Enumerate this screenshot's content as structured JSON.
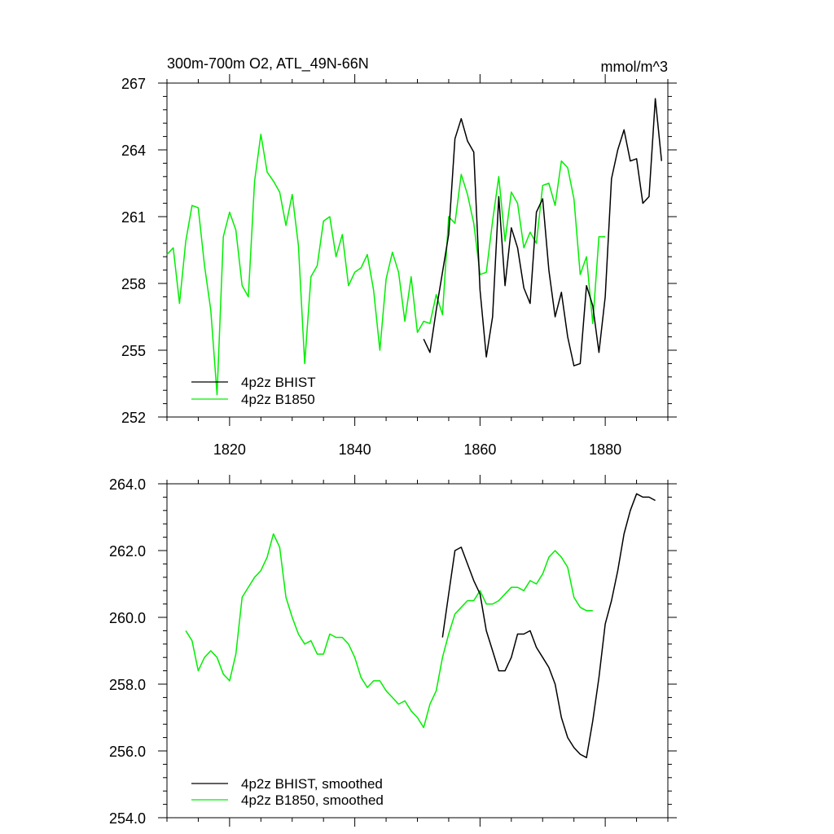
{
  "colors": {
    "bhist": "#000000",
    "b1850": "#00ee00"
  },
  "chart_data": [
    {
      "type": "line",
      "title": "300m-700m O2, ATL_49N-66N",
      "units": "mmol/m^3",
      "xlim": [
        1810,
        1890
      ],
      "ylim": [
        252,
        267
      ],
      "xticks": [
        1820,
        1840,
        1860,
        1880
      ],
      "xtick_labels": [
        "1820",
        "1840",
        "1860",
        "1880"
      ],
      "yticks": [
        252,
        255,
        258,
        261,
        264,
        267
      ],
      "ytick_labels": [
        "252",
        "255",
        "258",
        "261",
        "264",
        "267"
      ],
      "legend_position": "bottom-left",
      "series": [
        {
          "name": "4p2z BHIST",
          "color": "#000000",
          "x": [
            1851,
            1852,
            1853,
            1854,
            1855,
            1856,
            1857,
            1858,
            1859,
            1860,
            1861,
            1862,
            1863,
            1864,
            1865,
            1866,
            1867,
            1868,
            1869,
            1870,
            1871,
            1872,
            1873,
            1874,
            1875,
            1876,
            1877,
            1878,
            1879,
            1880,
            1881,
            1882,
            1883,
            1884,
            1885,
            1886,
            1887,
            1888,
            1889
          ],
          "y": [
            255.5,
            254.9,
            256.8,
            258.5,
            260.2,
            264.5,
            265.4,
            264.4,
            263.9,
            257.7,
            254.7,
            256.5,
            261.9,
            257.9,
            260.5,
            259.6,
            257.8,
            257.1,
            261.2,
            261.8,
            258.6,
            256.5,
            257.6,
            255.6,
            254.3,
            254.4,
            257.9,
            257.0,
            254.9,
            257.4,
            262.7,
            264.0,
            264.9,
            263.5,
            263.6,
            261.6,
            261.9,
            266.3,
            263.5
          ]
        },
        {
          "name": "4p2z B1850",
          "color": "#00ee00",
          "x": [
            1810,
            1811,
            1812,
            1813,
            1814,
            1815,
            1816,
            1817,
            1818,
            1819,
            1820,
            1821,
            1822,
            1823,
            1824,
            1825,
            1826,
            1827,
            1828,
            1829,
            1830,
            1831,
            1832,
            1833,
            1834,
            1835,
            1836,
            1837,
            1838,
            1839,
            1840,
            1841,
            1842,
            1843,
            1844,
            1845,
            1846,
            1847,
            1848,
            1849,
            1850,
            1851,
            1852,
            1853,
            1854,
            1855,
            1856,
            1857,
            1858,
            1859,
            1860,
            1861,
            1862,
            1863,
            1864,
            1865,
            1866,
            1867,
            1868,
            1869,
            1870,
            1871,
            1872,
            1873,
            1874,
            1875,
            1876,
            1877,
            1878,
            1879,
            1880
          ],
          "y": [
            259.3,
            259.6,
            257.1,
            259.9,
            261.5,
            261.4,
            258.8,
            256.8,
            253.0,
            260.1,
            261.2,
            260.4,
            257.9,
            257.4,
            262.6,
            264.7,
            263.0,
            262.6,
            262.1,
            260.6,
            262.0,
            259.7,
            254.4,
            258.3,
            258.8,
            260.8,
            261.0,
            259.2,
            260.2,
            257.9,
            258.5,
            258.7,
            259.3,
            257.7,
            255.0,
            258.2,
            259.4,
            258.5,
            256.3,
            258.3,
            255.8,
            256.3,
            256.2,
            257.5,
            256.6,
            261.0,
            260.7,
            262.9,
            262.0,
            260.7,
            258.4,
            258.5,
            260.8,
            262.8,
            259.9,
            262.1,
            261.6,
            259.6,
            260.3,
            259.8,
            262.4,
            262.5,
            261.5,
            263.5,
            263.2,
            261.8,
            258.4,
            259.2,
            256.2,
            260.1,
            260.1
          ]
        }
      ]
    },
    {
      "type": "line",
      "title": "",
      "xlim": [
        1810,
        1890
      ],
      "ylim": [
        254.0,
        264.0
      ],
      "xticks": [
        1820,
        1840,
        1860,
        1880
      ],
      "xtick_labels": [
        "",
        "",
        "",
        ""
      ],
      "yticks": [
        254.0,
        256.0,
        258.0,
        260.0,
        262.0,
        264.0
      ],
      "ytick_labels": [
        "254.0",
        "256.0",
        "258.0",
        "260.0",
        "262.0",
        "264.0"
      ],
      "legend_position": "bottom-left",
      "series": [
        {
          "name": "4p2z BHIST, smoothed",
          "color": "#000000",
          "x": [
            1854,
            1855,
            1856,
            1857,
            1858,
            1859,
            1860,
            1861,
            1862,
            1863,
            1864,
            1865,
            1866,
            1867,
            1868,
            1869,
            1870,
            1871,
            1872,
            1873,
            1874,
            1875,
            1876,
            1877,
            1878,
            1879,
            1880,
            1881,
            1882,
            1883,
            1884,
            1885,
            1886,
            1887,
            1888
          ],
          "y": [
            259.4,
            260.7,
            262.0,
            262.1,
            261.6,
            261.1,
            260.7,
            259.6,
            259.0,
            258.4,
            258.4,
            258.8,
            259.5,
            259.5,
            259.6,
            259.1,
            258.8,
            258.5,
            258.0,
            257.0,
            256.4,
            256.1,
            255.9,
            255.8,
            256.9,
            258.2,
            259.8,
            260.5,
            261.4,
            262.5,
            263.2,
            263.7,
            263.6,
            263.6,
            263.5
          ]
        },
        {
          "name": "4p2z B1850, smoothed",
          "color": "#00ee00",
          "x": [
            1813,
            1814,
            1815,
            1816,
            1817,
            1818,
            1819,
            1820,
            1821,
            1822,
            1823,
            1824,
            1825,
            1826,
            1827,
            1828,
            1829,
            1830,
            1831,
            1832,
            1833,
            1834,
            1835,
            1836,
            1837,
            1838,
            1839,
            1840,
            1841,
            1842,
            1843,
            1844,
            1845,
            1846,
            1847,
            1848,
            1849,
            1850,
            1851,
            1852,
            1853,
            1854,
            1855,
            1856,
            1857,
            1858,
            1859,
            1860,
            1861,
            1862,
            1863,
            1864,
            1865,
            1866,
            1867,
            1868,
            1869,
            1870,
            1871,
            1872,
            1873,
            1874,
            1875,
            1876,
            1877,
            1878
          ],
          "y": [
            259.6,
            259.3,
            258.4,
            258.8,
            259.0,
            258.8,
            258.3,
            258.1,
            258.9,
            260.6,
            260.9,
            261.2,
            261.4,
            261.8,
            262.5,
            262.1,
            260.6,
            260.0,
            259.5,
            259.2,
            259.3,
            258.9,
            258.9,
            259.5,
            259.4,
            259.4,
            259.2,
            258.8,
            258.2,
            257.9,
            258.1,
            258.1,
            257.8,
            257.6,
            257.4,
            257.5,
            257.2,
            257.0,
            256.7,
            257.4,
            257.8,
            258.8,
            259.5,
            260.1,
            260.3,
            260.5,
            260.5,
            260.8,
            260.4,
            260.4,
            260.5,
            260.7,
            260.9,
            260.9,
            260.8,
            261.1,
            261.0,
            261.3,
            261.8,
            262.0,
            261.8,
            261.5,
            260.6,
            260.3,
            260.2,
            260.2
          ]
        }
      ]
    }
  ]
}
